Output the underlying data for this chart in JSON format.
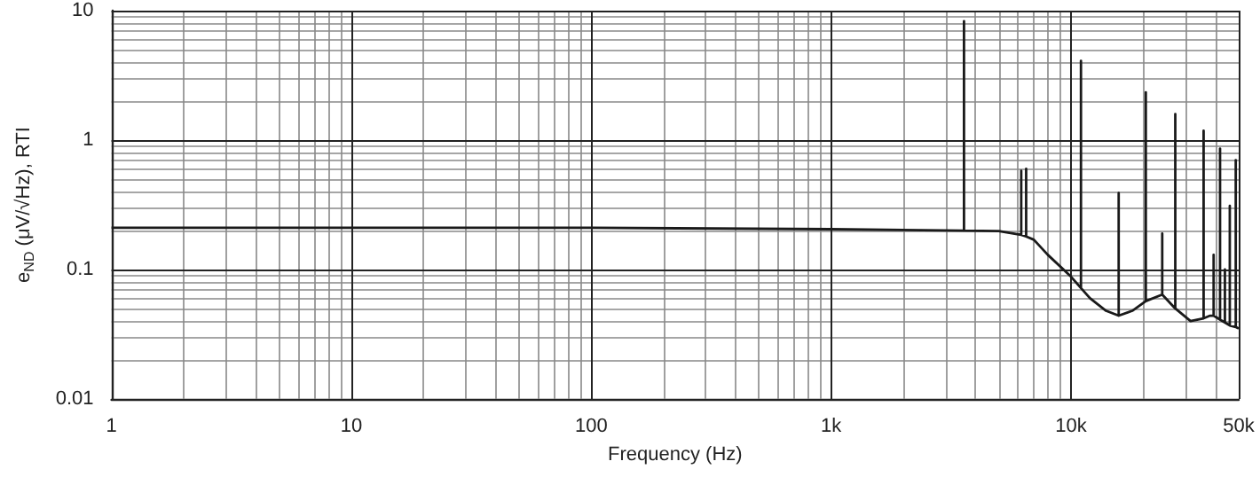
{
  "chart_data": {
    "type": "line",
    "xlabel": "Frequency (Hz)",
    "ylabel": "e$_{ND}$ (μV/√Hz), RTI",
    "series": [
      {
        "color": "#1a1a1a",
        "x": [
          1,
          10,
          100,
          1000,
          3580,
          3580,
          3580,
          5000,
          6200,
          6200,
          6200,
          6500,
          6500,
          6500,
          7000,
          8000,
          10000,
          11000,
          11000,
          11000,
          12000,
          14000,
          15800,
          15800,
          15800,
          18000,
          20500,
          20500,
          20500,
          24000,
          24000,
          24000,
          27200,
          27200,
          27200,
          31500,
          35700,
          35700,
          35700,
          38000,
          39300,
          39300,
          39300,
          41800,
          41800,
          41800,
          43800,
          43800,
          43800,
          45900,
          45900,
          45900,
          48600,
          48600,
          48600,
          50000
        ],
        "values": [
          0.21,
          0.21,
          0.21,
          0.205,
          0.2,
          8.3,
          0.2,
          0.198,
          0.185,
          0.58,
          0.185,
          0.18,
          0.6,
          0.18,
          0.17,
          0.13,
          0.088,
          0.072,
          4.1,
          0.072,
          0.06,
          0.048,
          0.044,
          0.39,
          0.044,
          0.048,
          0.057,
          2.34,
          0.057,
          0.064,
          0.19,
          0.064,
          0.05,
          1.59,
          0.05,
          0.04,
          0.042,
          1.18,
          0.042,
          0.044,
          0.044,
          0.13,
          0.044,
          0.041,
          0.86,
          0.041,
          0.039,
          0.1,
          0.039,
          0.037,
          0.31,
          0.037,
          0.036,
          0.7,
          0.036,
          0.035
        ]
      }
    ],
    "xlim": [
      1,
      50000
    ],
    "ylim": [
      0.01,
      10
    ],
    "xticks": [
      1,
      10,
      100,
      {
        "value": 1000,
        "label": "1k"
      },
      {
        "value": 10000,
        "label": "10k"
      },
      {
        "value": 50000,
        "label": "50k"
      }
    ],
    "yticks": [
      0.01,
      0.1,
      1,
      10
    ],
    "log": "xy",
    "grid": true
  }
}
